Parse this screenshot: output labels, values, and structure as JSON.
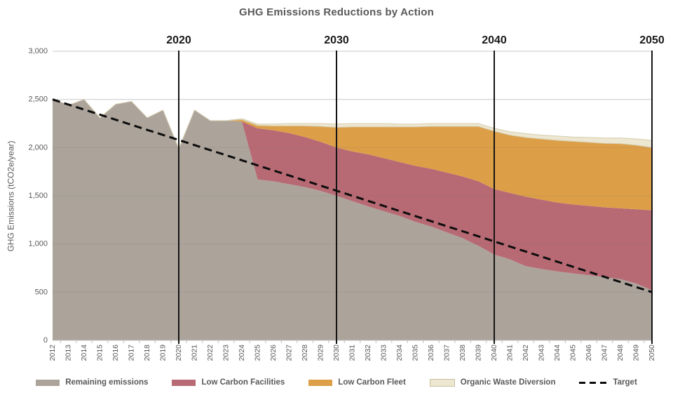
{
  "title": "GHG Emissions Reductions by Action",
  "y_axis": {
    "title": "GHG Emissions (tCO2e/year)",
    "ticks": [
      {
        "label": "0",
        "value": 0
      },
      {
        "label": "500",
        "value": 500
      },
      {
        "label": "1,000",
        "value": 1000
      },
      {
        "label": "1,500",
        "value": 1500
      },
      {
        "label": "2,000",
        "value": 2000
      },
      {
        "label": "2,500",
        "value": 2500
      },
      {
        "label": "3,000",
        "value": 3000
      }
    ]
  },
  "decade_markers": [
    {
      "label": "2020",
      "year": 2020
    },
    {
      "label": "2030",
      "year": 2030
    },
    {
      "label": "2040",
      "year": 2040
    },
    {
      "label": "2050",
      "year": 2050
    }
  ],
  "legend": [
    {
      "label": "Remaining emissions",
      "type": "box",
      "color": "#ACA49B"
    },
    {
      "label": "Low Carbon Facilities",
      "type": "box",
      "color": "#B76A74"
    },
    {
      "label": "Low Carbon Fleet",
      "type": "box",
      "color": "#DC9F48"
    },
    {
      "label": "Organic Waste Diversion",
      "type": "box",
      "color": "#EDE7D1",
      "border": "#C8C09F"
    },
    {
      "label": "Target",
      "type": "dash",
      "color": "#0d0d0d"
    }
  ],
  "colors": {
    "remaining": "#ACA49B",
    "facilities": "#B76A74",
    "fleet": "#DC9F48",
    "organic": "#EDE7D1",
    "organic_edge": "#D5CDB0",
    "grid": "#D9D9D9",
    "grid_overlay": "rgba(90,90,90,0.13)",
    "axis_line": "#C0C0C0",
    "axis_text": "#595959",
    "decade_line": "#141414",
    "decade_text": "#1a1a1a",
    "target": "#0d0d0d"
  },
  "chart_data": {
    "type": "area",
    "stacked": true,
    "title": "GHG Emissions Reductions by Action",
    "xlabel": "",
    "ylabel": "GHG Emissions (tCO2e/year)",
    "ylim": [
      0,
      3000
    ],
    "grid": true,
    "legend_position": "bottom",
    "x": [
      2012,
      2013,
      2014,
      2015,
      2016,
      2017,
      2018,
      2019,
      2020,
      2021,
      2022,
      2023,
      2024,
      2025,
      2026,
      2027,
      2028,
      2029,
      2030,
      2031,
      2032,
      2033,
      2034,
      2035,
      2036,
      2037,
      2038,
      2039,
      2040,
      2041,
      2042,
      2043,
      2044,
      2045,
      2046,
      2047,
      2048,
      2049,
      2050
    ],
    "series": [
      {
        "name": "Remaining emissions",
        "values": [
          2510,
          2440,
          2500,
          2310,
          2450,
          2480,
          2310,
          2390,
          1990,
          2390,
          2280,
          2280,
          2270,
          1670,
          1650,
          1620,
          1590,
          1550,
          1500,
          1445,
          1390,
          1340,
          1290,
          1230,
          1180,
          1120,
          1060,
          980,
          890,
          840,
          770,
          740,
          715,
          695,
          675,
          655,
          635,
          590,
          520
        ]
      },
      {
        "name": "Low Carbon Facilities",
        "values": [
          0,
          0,
          0,
          0,
          0,
          0,
          0,
          0,
          0,
          0,
          0,
          0,
          0,
          530,
          530,
          530,
          520,
          510,
          500,
          515,
          540,
          550,
          560,
          580,
          600,
          620,
          640,
          670,
          680,
          690,
          720,
          720,
          715,
          715,
          720,
          725,
          735,
          770,
          830
        ]
      },
      {
        "name": "Low Carbon Fleet",
        "values": [
          0,
          0,
          0,
          0,
          0,
          0,
          0,
          0,
          0,
          0,
          0,
          0,
          20,
          30,
          45,
          75,
          115,
          160,
          210,
          255,
          285,
          325,
          365,
          405,
          440,
          480,
          520,
          570,
          600,
          600,
          615,
          630,
          645,
          655,
          660,
          665,
          670,
          665,
          650
        ]
      },
      {
        "name": "Organic Waste Diversion",
        "values": [
          0,
          0,
          0,
          0,
          0,
          0,
          0,
          0,
          0,
          0,
          0,
          0,
          10,
          15,
          20,
          25,
          25,
          30,
          35,
          35,
          35,
          35,
          30,
          30,
          30,
          30,
          30,
          30,
          30,
          35,
          40,
          40,
          45,
          45,
          50,
          55,
          60,
          65,
          75
        ]
      }
    ],
    "target_line": {
      "name": "Target",
      "values": [
        2500,
        2447,
        2395,
        2342,
        2289,
        2237,
        2184,
        2132,
        2079,
        2026,
        1974,
        1921,
        1868,
        1816,
        1763,
        1711,
        1658,
        1605,
        1553,
        1500,
        1447,
        1395,
        1342,
        1289,
        1237,
        1184,
        1132,
        1079,
        1026,
        974,
        921,
        868,
        816,
        763,
        711,
        658,
        605,
        553,
        500
      ]
    }
  }
}
